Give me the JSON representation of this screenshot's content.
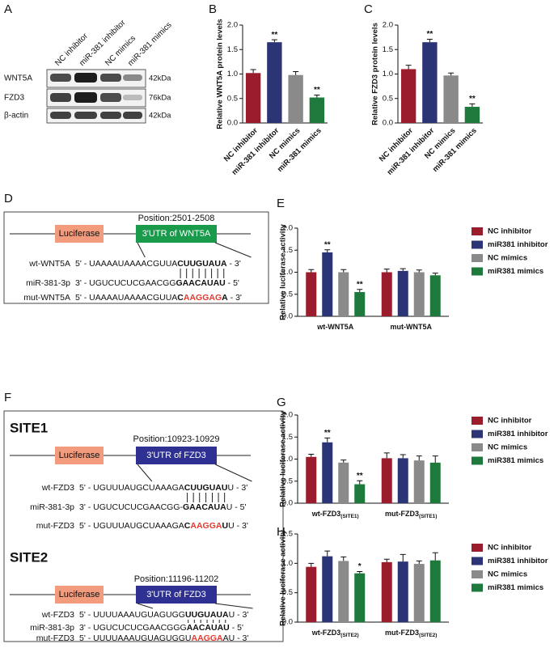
{
  "chart_data": [
    {
      "type": "bar",
      "panel": "B",
      "ylabel": "Relative WNT5A protein levels",
      "categories": [
        "NC inhibitor",
        "miR-381 inhibitor",
        "NC mimics",
        "miR-381 mimics"
      ],
      "colors": [
        "#9b1c2c",
        "#2b3575",
        "#8a8a8a",
        "#1d7a3c"
      ],
      "values": [
        1.02,
        1.65,
        0.98,
        0.52
      ],
      "errors": [
        0.07,
        0.05,
        0.07,
        0.05
      ],
      "significance": [
        null,
        "**",
        null,
        "**"
      ],
      "ylim": [
        0,
        2
      ],
      "yticks": [
        {
          "value": 0,
          "label": "0.0"
        },
        0.5,
        {
          "value": 1,
          "label": "1.0"
        },
        1.5,
        {
          "value": 2,
          "label": "2.0"
        }
      ]
    },
    {
      "type": "bar",
      "panel": "C",
      "ylabel": "Relative FZD3 protein levels",
      "categories": [
        "NC inhibitor",
        "miR-381 inhibitor",
        "NC mimics",
        "miR-381 mimics"
      ],
      "colors": [
        "#9b1c2c",
        "#2b3575",
        "#8a8a8a",
        "#1d7a3c"
      ],
      "values": [
        1.1,
        1.65,
        0.97,
        0.33
      ],
      "errors": [
        0.08,
        0.06,
        0.05,
        0.06
      ],
      "significance": [
        null,
        "**",
        null,
        "**"
      ],
      "ylim": [
        0,
        2
      ],
      "yticks": [
        {
          "value": 0,
          "label": "0.0"
        },
        0.5,
        {
          "value": 1,
          "label": "1.0"
        },
        1.5,
        {
          "value": 2,
          "label": "2.0"
        }
      ]
    },
    {
      "type": "grouped_bar",
      "panel": "E",
      "ylabel": "Relative luciferase activity",
      "categories": [
        "wt-WNT5A",
        "mut-WNT5A"
      ],
      "series": [
        {
          "name": "NC inhibitor",
          "color": "#9b1c2c",
          "values": [
            1.0,
            1.0
          ],
          "errors": [
            0.06,
            0.07
          ],
          "significance": [
            null,
            null
          ]
        },
        {
          "name": "miR381 inhibitor",
          "color": "#2b3575",
          "values": [
            1.45,
            1.03
          ],
          "errors": [
            0.06,
            0.05
          ],
          "significance": [
            "**",
            null
          ]
        },
        {
          "name": "NC mimics",
          "color": "#8a8a8a",
          "values": [
            1.0,
            1.0
          ],
          "errors": [
            0.06,
            0.05
          ],
          "significance": [
            null,
            null
          ]
        },
        {
          "name": "miR381 mimics",
          "color": "#1d7a3c",
          "values": [
            0.55,
            0.93
          ],
          "errors": [
            0.06,
            0.05
          ],
          "significance": [
            "**",
            null
          ]
        }
      ],
      "ylim": [
        0,
        2
      ],
      "yticks": [
        {
          "value": 0,
          "label": "0.0"
        },
        0.5,
        {
          "value": 1,
          "label": "1.0"
        },
        1.5,
        {
          "value": 2,
          "label": "2.0"
        }
      ]
    },
    {
      "type": "grouped_bar",
      "panel": "G",
      "ylabel": "Relative luciferase activity",
      "categories": [
        "wt-FZD3",
        "mut-FZD3"
      ],
      "category_subscripts": [
        "(SITE1)",
        "(SITE1)"
      ],
      "series": [
        {
          "name": "NC inhibitor",
          "color": "#9b1c2c",
          "values": [
            1.05,
            1.02
          ],
          "errors": [
            0.06,
            0.12
          ],
          "significance": [
            null,
            null
          ]
        },
        {
          "name": "miR381 inhibitor",
          "color": "#2b3575",
          "values": [
            1.38,
            1.02
          ],
          "errors": [
            0.1,
            0.08
          ],
          "significance": [
            "**",
            null
          ]
        },
        {
          "name": "NC mimics",
          "color": "#8a8a8a",
          "values": [
            0.92,
            0.97
          ],
          "errors": [
            0.06,
            0.1
          ],
          "significance": [
            null,
            null
          ]
        },
        {
          "name": "miR381 mimics",
          "color": "#1d7a3c",
          "values": [
            0.43,
            0.92
          ],
          "errors": [
            0.08,
            0.15
          ],
          "significance": [
            "**",
            null
          ]
        }
      ],
      "ylim": [
        0,
        2
      ],
      "yticks": [
        {
          "value": 0,
          "label": "0.0"
        },
        0.5,
        {
          "value": 1,
          "label": "1.0"
        },
        1.5,
        {
          "value": 2,
          "label": "2.0"
        }
      ]
    },
    {
      "type": "grouped_bar",
      "panel": "H",
      "ylabel": "Relative luciferase activity",
      "categories": [
        "wt-FZD3",
        "mut-FZD3"
      ],
      "category_subscripts": [
        "(SITE2)",
        "(SITE2)"
      ],
      "series": [
        {
          "name": "NC inhibitor",
          "color": "#9b1c2c",
          "values": [
            0.94,
            1.02
          ],
          "errors": [
            0.06,
            0.05
          ],
          "significance": [
            null,
            null
          ]
        },
        {
          "name": "miR381 inhibitor",
          "color": "#2b3575",
          "values": [
            1.12,
            1.03
          ],
          "errors": [
            0.09,
            0.12
          ],
          "significance": [
            null,
            null
          ]
        },
        {
          "name": "NC mimics",
          "color": "#8a8a8a",
          "values": [
            1.04,
            0.99
          ],
          "errors": [
            0.07,
            0.05
          ],
          "significance": [
            null,
            null
          ]
        },
        {
          "name": "miR381 mimics",
          "color": "#1d7a3c",
          "values": [
            0.83,
            1.05
          ],
          "errors": [
            0.03,
            0.13
          ],
          "significance": [
            "*",
            null
          ]
        }
      ],
      "ylim": [
        0,
        1.5
      ],
      "yticks": [
        {
          "value": 0,
          "label": "0.0"
        },
        0.5,
        {
          "value": 1,
          "label": "1.0"
        },
        1.5
      ]
    }
  ],
  "panel_a": {
    "letter": "A",
    "lanes": [
      "NC inhibitor",
      "miR-381 inhibitor",
      "NC mimics",
      "miR-381 mimics"
    ],
    "rows": [
      {
        "label": "WNT5A",
        "size": "42kDa"
      },
      {
        "label": "FZD3",
        "size": "76kDa"
      },
      {
        "label": "β-actin",
        "size": "42kDa"
      }
    ]
  },
  "panel_d": {
    "letter": "D",
    "construct": {
      "reporter": "Luciferase",
      "utr": "3'UTR of WNT5A",
      "position": "Position:2501-2508",
      "color": "#1a9a4b"
    },
    "rows": [
      {
        "label": "wt-WNT5A",
        "segments": [
          {
            "text": "5' - UAAAAUAAAACGUUA"
          },
          {
            "text": "CUUGUAUA",
            "bold": true
          },
          {
            "text": " - 3'"
          }
        ]
      },
      {
        "label": "miR-381-3p",
        "segments": [
          {
            "text": "3' - UGUCUCUCGAACGG"
          },
          {
            "text": "GAACAUAU",
            "bold": true
          },
          {
            "text": " - 5'"
          }
        ]
      },
      {
        "label": "mut-WNT5A",
        "segments": [
          {
            "text": "5' - UAAAAUAAAACGUUA"
          },
          {
            "text": "C",
            "bold": true
          },
          {
            "text": "AAGGAG",
            "bold": true,
            "color": "#e8392f"
          },
          {
            "text": "A",
            "bold": true
          },
          {
            "text": " - 3'"
          }
        ]
      }
    ]
  },
  "panel_f": {
    "letter": "F",
    "sites": [
      {
        "title": "SITE1",
        "construct": {
          "reporter": "Luciferase",
          "utr": "3'UTR of FZD3",
          "position": "Position:10923-10929",
          "color": "#2e3192"
        },
        "rows": [
          {
            "label": "wt-FZD3",
            "segments": [
              {
                "text": "5' - UGUUUAUGCUAAAGA"
              },
              {
                "text": "CUUGUAU",
                "bold": true
              },
              {
                "text": "U - 3'"
              }
            ]
          },
          {
            "label": "miR-381-3p",
            "segments": [
              {
                "text": "3' - UGUCUCUCGAACGG-"
              },
              {
                "text": "GAACAUA",
                "bold": true
              },
              {
                "text": "U - 5'"
              }
            ]
          },
          {
            "label": "mut-FZD3",
            "segments": [
              {
                "text": "5' - UGUUUAUGCUAAAGA"
              },
              {
                "text": "C",
                "bold": true
              },
              {
                "text": "AAGGA",
                "bold": true,
                "color": "#e8392f"
              },
              {
                "text": "U",
                "bold": true
              },
              {
                "text": "U - 3'"
              }
            ]
          }
        ]
      },
      {
        "title": "SITE2",
        "construct": {
          "reporter": "Luciferase",
          "utr": "3'UTR of FZD3",
          "position": "Position:11196-11202",
          "color": "#2e3192"
        },
        "rows": [
          {
            "label": "wt-FZD3",
            "segments": [
              {
                "text": "5' - UUUUAAAUGUAGUGG"
              },
              {
                "text": "UUGUAUA",
                "bold": true
              },
              {
                "text": "U - 3'"
              }
            ]
          },
          {
            "label": "miR-381-3p",
            "segments": [
              {
                "text": "3' - UGUCUCUCGAACGGG"
              },
              {
                "text": "AACAUAU",
                "bold": true
              },
              {
                "text": " - 5'"
              }
            ]
          },
          {
            "label": "mut-FZD3",
            "segments": [
              {
                "text": "5' - UUUUAAAUGUAGUGGU"
              },
              {
                "text": "AAGGA",
                "bold": true,
                "color": "#e8392f"
              },
              {
                "text": "AU - 3'"
              }
            ]
          }
        ]
      }
    ]
  }
}
